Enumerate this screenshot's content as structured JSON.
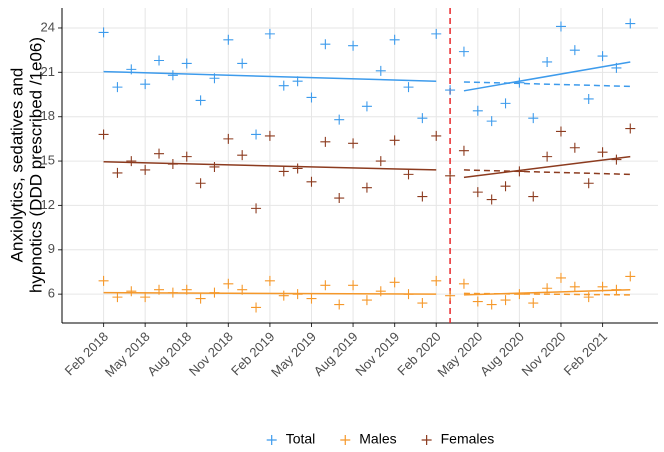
{
  "chart_data": {
    "type": "scatter",
    "ylabel": [
      "Anxiolytics, sedatives and",
      "hypnotics (DDD prescribed /1e06)"
    ],
    "x": [
      "2018-02",
      "2018-03",
      "2018-04",
      "2018-05",
      "2018-06",
      "2018-07",
      "2018-08",
      "2018-09",
      "2018-10",
      "2018-11",
      "2018-12",
      "2019-01",
      "2019-02",
      "2019-03",
      "2019-04",
      "2019-05",
      "2019-06",
      "2019-07",
      "2019-08",
      "2019-09",
      "2019-10",
      "2019-11",
      "2019-12",
      "2020-01",
      "2020-02",
      "2020-03",
      "2020-04",
      "2020-05",
      "2020-06",
      "2020-07",
      "2020-08",
      "2020-09",
      "2020-10",
      "2020-11",
      "2020-12",
      "2021-01",
      "2021-02",
      "2021-03",
      "2021-04"
    ],
    "series": [
      {
        "name": "Total",
        "color": "#3d9bec",
        "values": [
          23.7,
          20.0,
          21.2,
          20.2,
          21.8,
          20.8,
          21.6,
          19.1,
          20.6,
          23.2,
          21.6,
          16.8,
          23.6,
          20.1,
          20.4,
          19.3,
          22.9,
          17.8,
          22.8,
          18.7,
          21.1,
          23.2,
          20.0,
          17.9,
          23.6,
          19.8,
          22.4,
          18.4,
          17.7,
          18.9,
          20.3,
          17.9,
          21.7,
          24.1,
          22.5,
          19.2,
          22.1,
          21.3,
          24.3
        ],
        "fit": {
          "pre": {
            "x": [
              "2018-02",
              "2020-02"
            ],
            "y": [
              21.05,
              20.4
            ]
          },
          "post": {
            "x": [
              "2020-04",
              "2021-04"
            ],
            "y": [
              19.75,
              21.7
            ]
          },
          "counterfactual": {
            "x": [
              "2020-04",
              "2021-04"
            ],
            "y": [
              20.35,
              20.05
            ]
          }
        }
      },
      {
        "name": "Males",
        "color": "#f5982a",
        "values": [
          6.9,
          5.8,
          6.2,
          5.8,
          6.3,
          6.1,
          6.3,
          5.7,
          6.1,
          6.7,
          6.3,
          5.1,
          6.9,
          5.9,
          6.0,
          5.7,
          6.6,
          5.3,
          6.6,
          5.6,
          6.2,
          6.8,
          6.0,
          5.4,
          6.9,
          5.9,
          6.7,
          5.5,
          5.3,
          5.6,
          6.0,
          5.4,
          6.4,
          7.1,
          6.5,
          5.8,
          6.5,
          6.3,
          7.2
        ],
        "fit": {
          "pre": {
            "x": [
              "2018-02",
              "2020-02"
            ],
            "y": [
              6.1,
              6.0
            ]
          },
          "post": {
            "x": [
              "2020-04",
              "2021-04"
            ],
            "y": [
              5.95,
              6.3
            ]
          },
          "counterfactual": {
            "x": [
              "2020-04",
              "2021-04"
            ],
            "y": [
              6.05,
              5.95
            ]
          }
        }
      },
      {
        "name": "Females",
        "color": "#8c3b1f",
        "values": [
          16.8,
          14.2,
          15.0,
          14.4,
          15.5,
          14.8,
          15.3,
          13.5,
          14.6,
          16.5,
          15.4,
          11.8,
          16.7,
          14.3,
          14.5,
          13.6,
          16.3,
          12.5,
          16.2,
          13.2,
          15.0,
          16.4,
          14.1,
          12.6,
          16.7,
          14.0,
          15.7,
          12.9,
          12.4,
          13.3,
          14.3,
          12.6,
          15.3,
          17.0,
          15.9,
          13.5,
          15.6,
          15.1,
          17.2
        ],
        "fit": {
          "pre": {
            "x": [
              "2018-02",
              "2020-02"
            ],
            "y": [
              14.95,
              14.4
            ]
          },
          "post": {
            "x": [
              "2020-04",
              "2021-04"
            ],
            "y": [
              13.9,
              15.3
            ]
          },
          "counterfactual": {
            "x": [
              "2020-04",
              "2021-04"
            ],
            "y": [
              14.4,
              14.1
            ]
          }
        }
      }
    ],
    "intervention": {
      "x": "2020-03",
      "color": "#e8262a"
    },
    "xlim": [
      "2017-11",
      "2021-06"
    ],
    "xticks": [
      {
        "value": "2018-02",
        "label": "Feb 2018"
      },
      {
        "value": "2018-05",
        "label": "May 2018"
      },
      {
        "value": "2018-08",
        "label": "Aug 2018"
      },
      {
        "value": "2018-11",
        "label": "Nov 2018"
      },
      {
        "value": "2019-02",
        "label": "Feb 2019"
      },
      {
        "value": "2019-05",
        "label": "May 2019"
      },
      {
        "value": "2019-08",
        "label": "Aug 2019"
      },
      {
        "value": "2019-11",
        "label": "Nov 2019"
      },
      {
        "value": "2020-02",
        "label": "Feb 2020"
      },
      {
        "value": "2020-05",
        "label": "May 2020"
      },
      {
        "value": "2020-08",
        "label": "Aug 2020"
      },
      {
        "value": "2020-11",
        "label": "Nov 2020"
      },
      {
        "value": "2021-02",
        "label": "Feb 2021"
      }
    ],
    "ylim": [
      4.05,
      25.35
    ],
    "yticks": [
      6,
      9,
      12,
      15,
      18,
      21,
      24
    ],
    "grid": true,
    "legend": "bottom"
  }
}
